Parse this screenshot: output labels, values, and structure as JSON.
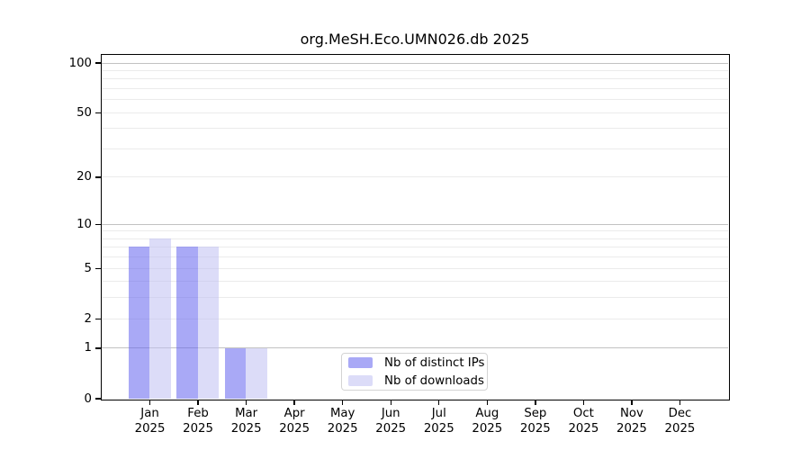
{
  "chart_data": {
    "type": "bar",
    "title": "org.MeSH.Eco.UMN026.db 2025",
    "categories": [
      "Jan",
      "Feb",
      "Mar",
      "Apr",
      "May",
      "Jun",
      "Jul",
      "Aug",
      "Sep",
      "Oct",
      "Nov",
      "Dec"
    ],
    "x_tick_second_line": "2025",
    "series": [
      {
        "name": "Nb of distinct IPs",
        "swatch_color": "#a9a9f6",
        "bar_rgba": "rgba(99,99,239,0.55)",
        "values": [
          7,
          7,
          1,
          0,
          0,
          0,
          0,
          0,
          0,
          0,
          0,
          0
        ]
      },
      {
        "name": "Nb of downloads",
        "swatch_color": "#dcdcf8",
        "bar_rgba": "rgba(191,191,242,0.55)",
        "values": [
          8,
          7,
          1,
          0,
          0,
          0,
          0,
          0,
          0,
          0,
          0,
          0
        ]
      }
    ],
    "yscale": "log1p",
    "ylim": [
      0,
      112
    ],
    "yticks": [
      100,
      50,
      20,
      10,
      5,
      2,
      1,
      0
    ],
    "gridlines": {
      "major": [
        1,
        10,
        100
      ],
      "minor": [
        2,
        3,
        4,
        5,
        6,
        7,
        8,
        9,
        20,
        30,
        40,
        50,
        60,
        70,
        80,
        90
      ]
    },
    "grid": true,
    "legend_position": "inside plot, lower center",
    "colors": {
      "axis": "#000000",
      "grid_major": "#c2c2c2",
      "grid_minor": "#ebebeb",
      "legend_border": "#d4d4d4",
      "background": "#ffffff"
    }
  }
}
